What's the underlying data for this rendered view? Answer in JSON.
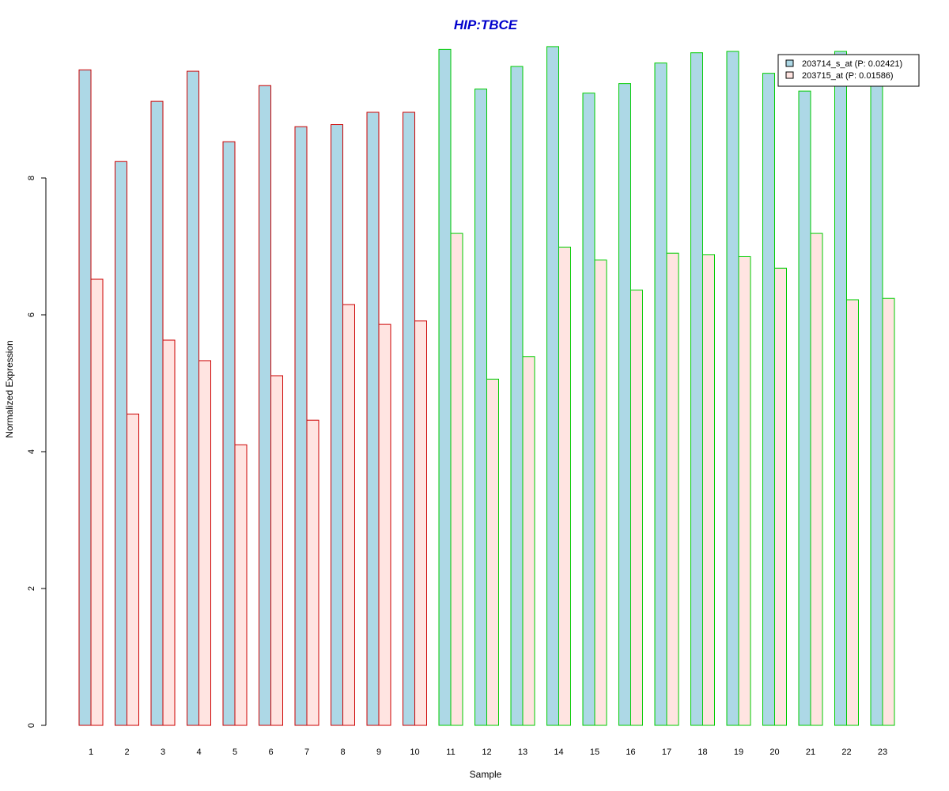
{
  "chart_data": {
    "type": "bar",
    "title": "HIP:TBCE",
    "xlabel": "Sample",
    "ylabel": "Normalized Expression",
    "categories": [
      "1",
      "2",
      "3",
      "4",
      "5",
      "6",
      "7",
      "8",
      "9",
      "10",
      "11",
      "12",
      "13",
      "14",
      "15",
      "16",
      "17",
      "18",
      "19",
      "20",
      "21",
      "22",
      "23"
    ],
    "yticks": [
      0,
      2,
      4,
      6,
      8
    ],
    "ylim": [
      0,
      10.26
    ],
    "grid": false,
    "legend_position": "top-right",
    "series": [
      {
        "name": "203714_s_at (P: 0.02421)",
        "fill": "#add8e6",
        "values": [
          9.58,
          8.24,
          9.12,
          9.56,
          8.53,
          9.35,
          8.75,
          8.78,
          8.96,
          8.96,
          9.88,
          9.3,
          9.63,
          9.92,
          9.24,
          9.38,
          9.68,
          9.83,
          9.85,
          9.53,
          9.27,
          9.85,
          9.42
        ]
      },
      {
        "name": "203715_at (P: 0.01586)",
        "fill": "#ffe4e1",
        "values": [
          6.52,
          4.55,
          5.63,
          5.33,
          4.1,
          5.11,
          4.46,
          6.15,
          5.86,
          5.91,
          7.19,
          5.06,
          5.39,
          6.99,
          6.8,
          6.36,
          6.9,
          6.88,
          6.85,
          6.68,
          7.19,
          6.22,
          6.24
        ]
      }
    ],
    "group_outline_colors": [
      "#cc0000",
      "#cc0000",
      "#cc0000",
      "#cc0000",
      "#cc0000",
      "#cc0000",
      "#cc0000",
      "#cc0000",
      "#cc0000",
      "#cc0000",
      "#00cc00",
      "#00cc00",
      "#00cc00",
      "#00cc00",
      "#00cc00",
      "#00cc00",
      "#00cc00",
      "#00cc00",
      "#00cc00",
      "#00cc00",
      "#00cc00",
      "#00cc00",
      "#00cc00"
    ],
    "title_color": "#0000cc"
  }
}
